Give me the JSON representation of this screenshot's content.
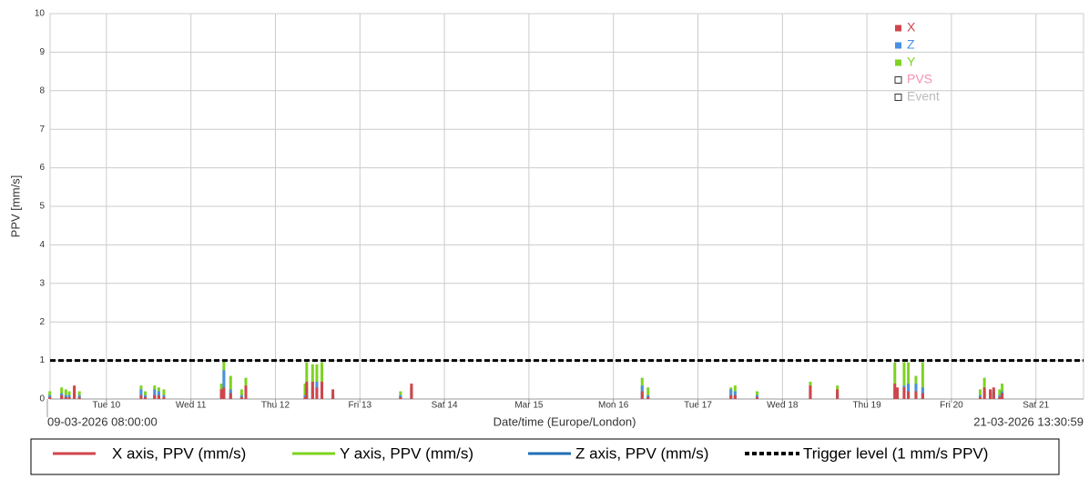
{
  "chart_data": {
    "type": "bar",
    "y_label": "PPV [mm/s]",
    "x_label": "Date/time (Europe/London)",
    "start_label": "09-03-2026 08:00:00",
    "end_label": "21-03-2026 13:30:59",
    "xlim": [
      9.3333,
      21.5632
    ],
    "xticks": [
      {
        "value": 10,
        "label": "Tue 10"
      },
      {
        "value": 11,
        "label": "Wed 11"
      },
      {
        "value": 12,
        "label": "Thu 12"
      },
      {
        "value": 13,
        "label": "Fri 13"
      },
      {
        "value": 14,
        "label": "Sat 14"
      },
      {
        "value": 15,
        "label": "Mar 15"
      },
      {
        "value": 16,
        "label": "Mon 16"
      },
      {
        "value": 17,
        "label": "Tue 17"
      },
      {
        "value": 18,
        "label": "Wed 18"
      },
      {
        "value": 19,
        "label": "Thu 19"
      },
      {
        "value": 20,
        "label": "Fri 20"
      },
      {
        "value": 21,
        "label": "Sat 21"
      }
    ],
    "ylim": [
      0,
      10
    ],
    "yticks": [
      0,
      1,
      2,
      3,
      4,
      5,
      6,
      7,
      8,
      9,
      10
    ],
    "grid": true,
    "x": [
      9.33,
      9.47,
      9.52,
      9.56,
      9.62,
      9.68,
      10.41,
      10.46,
      10.57,
      10.62,
      10.68,
      11.36,
      11.39,
      11.47,
      11.6,
      11.65,
      12.35,
      12.37,
      12.44,
      12.49,
      12.55,
      12.68,
      13.48,
      13.61,
      16.34,
      16.41,
      17.39,
      17.44,
      17.7,
      18.33,
      18.65,
      19.33,
      19.36,
      19.44,
      19.49,
      19.58,
      19.66,
      20.34,
      20.39,
      20.46,
      20.5,
      20.57,
      20.6
    ],
    "series": [
      {
        "name": "Y",
        "color": "#7ed321",
        "values": [
          0.2,
          0.3,
          0.25,
          0.2,
          0.3,
          0.2,
          0.35,
          0.2,
          0.35,
          0.3,
          0.25,
          0.4,
          1.0,
          0.6,
          0.25,
          0.55,
          0.4,
          0.95,
          0.9,
          0.9,
          0.95,
          0.1,
          0.2,
          0.3,
          0.55,
          0.3,
          0.3,
          0.35,
          0.2,
          0.45,
          0.35,
          0.95,
          0.2,
          0.95,
          0.95,
          0.6,
          0.95,
          0.25,
          0.55,
          0.2,
          0.2,
          0.25,
          0.4
        ]
      },
      {
        "name": "Z",
        "color": "#4a90e2",
        "values": [
          0.1,
          0.15,
          0.1,
          0.1,
          0.2,
          0.1,
          0.25,
          0.1,
          0.25,
          0.2,
          0.1,
          0.2,
          0.75,
          0.25,
          0.1,
          0.25,
          0.1,
          0.3,
          0.3,
          0.45,
          0.4,
          0.1,
          0.1,
          0.3,
          0.35,
          0.1,
          0.25,
          0.2,
          0.1,
          0.2,
          0.15,
          0.25,
          0.15,
          0.35,
          0.4,
          0.4,
          0.3,
          0.1,
          0.2,
          0.25,
          0.2,
          0.1,
          0.2
        ]
      },
      {
        "name": "X",
        "color": "#d0454c",
        "values": [
          0.05,
          0.1,
          0.05,
          0.05,
          0.35,
          0.05,
          0.1,
          0.05,
          0.1,
          0.1,
          0.05,
          0.25,
          0.3,
          0.15,
          0.05,
          0.35,
          0.05,
          0.45,
          0.45,
          0.3,
          0.45,
          0.25,
          0.05,
          0.4,
          0.2,
          0.05,
          0.1,
          0.1,
          0.05,
          0.35,
          0.25,
          0.4,
          0.3,
          0.3,
          0.2,
          0.2,
          0.15,
          0.05,
          0.3,
          0.25,
          0.3,
          0.05,
          0.15
        ]
      }
    ],
    "legend_extra": [
      {
        "name": "PVS",
        "color": "#f48fb1"
      },
      {
        "name": "Event",
        "color": "#bbbbbb"
      }
    ],
    "trigger": {
      "value": 1,
      "color": "#000000"
    },
    "bottom_legend": [
      {
        "label": "X axis, PPV (mm/s)",
        "color": "#d0454c"
      },
      {
        "label": "Y axis, PPV (mm/s)",
        "color": "#7ed321"
      },
      {
        "label": "Z axis, PPV (mm/s)",
        "color": "#1f6fb5"
      },
      {
        "label": "Trigger level (1 mm/s PPV)",
        "color": "#000000"
      }
    ]
  }
}
